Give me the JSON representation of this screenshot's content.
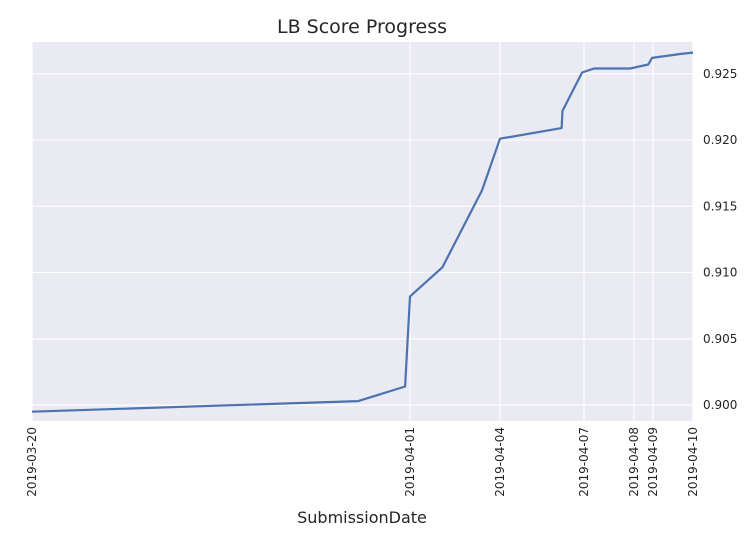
{
  "chart_data": {
    "type": "line",
    "title": "LB Score Progress",
    "xlabel": "SubmissionDate",
    "ylabel": "",
    "x_tick_labels": [
      "2019-03-20",
      "2019-04-01",
      "2019-04-04",
      "2019-04-07",
      "2019-04-08",
      "2019-04-09",
      "2019-04-10"
    ],
    "y_ticks": [
      0.9,
      0.905,
      0.91,
      0.915,
      0.92,
      0.925
    ],
    "y_tick_labels": [
      "0.900",
      "0.905",
      "0.910",
      "0.915",
      "0.920",
      "0.925"
    ],
    "ylim": [
      0.8988,
      0.9274
    ],
    "y_axis_side": "right",
    "grid": true,
    "series": [
      {
        "color": "#4c72b0",
        "points": [
          {
            "tick": 0,
            "frac": 0.0,
            "y": 0.8995
          },
          {
            "tick": 0,
            "frac": 0.863,
            "y": 0.9003
          },
          {
            "tick": 0,
            "frac": 0.987,
            "y": 0.9014
          },
          {
            "tick": 1,
            "frac": 0.0,
            "y": 0.9082
          },
          {
            "tick": 1,
            "frac": 0.36,
            "y": 0.9104
          },
          {
            "tick": 1,
            "frac": 0.8,
            "y": 0.9162
          },
          {
            "tick": 2,
            "frac": 0.0,
            "y": 0.9201
          },
          {
            "tick": 2,
            "frac": 0.733,
            "y": 0.9209
          },
          {
            "tick": 2,
            "frac": 0.744,
            "y": 0.9222
          },
          {
            "tick": 2,
            "frac": 0.977,
            "y": 0.9251
          },
          {
            "tick": 3,
            "frac": 0.2,
            "y": 0.9254
          },
          {
            "tick": 3,
            "frac": 0.92,
            "y": 0.9254
          },
          {
            "tick": 4,
            "frac": 0.75,
            "y": 0.9257
          },
          {
            "tick": 4,
            "frac": 0.95,
            "y": 0.9262
          },
          {
            "tick": 5,
            "frac": 0.7,
            "y": 0.9265
          },
          {
            "tick": 6,
            "frac": 0.0,
            "y": 0.9266
          }
        ]
      }
    ]
  }
}
